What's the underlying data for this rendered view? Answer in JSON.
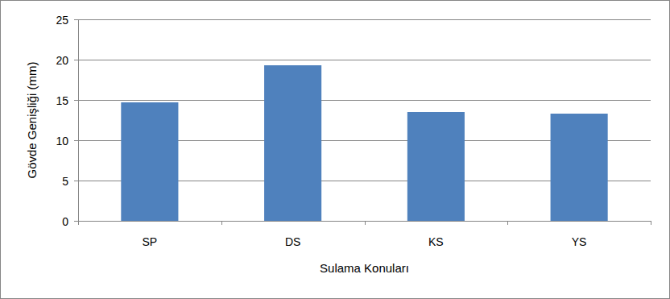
{
  "chart_data": {
    "type": "bar",
    "x_label": "Sulama Konuları",
    "y_label": "Gövde Genişliği (mm)",
    "categories": [
      "SP",
      "DS",
      "KS",
      "YS"
    ],
    "values": [
      14.7,
      19.3,
      13.5,
      13.3
    ],
    "color": "#4f81bd",
    "ylim": [
      0,
      25
    ],
    "yticks": [
      0,
      5,
      10,
      15,
      20,
      25
    ],
    "grid": true
  }
}
